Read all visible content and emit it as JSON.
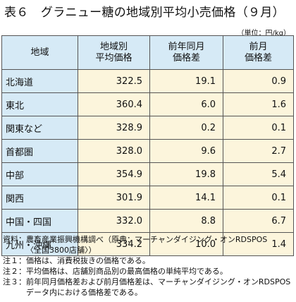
{
  "title": "表６　グラニュー糖の地域別平均小売価格（９月）",
  "unit": "（単位：円/kg）",
  "table": {
    "headers": [
      [
        "地域"
      ],
      [
        "地域別",
        "平均価格"
      ],
      [
        "前年同月",
        "価格差"
      ],
      [
        "前月",
        "価格差"
      ]
    ],
    "rows": [
      {
        "region": "北海道",
        "avg": "322.5",
        "yoy": "19.1",
        "mom": "0.9"
      },
      {
        "region": "東北",
        "avg": "360.4",
        "yoy": "6.0",
        "mom": "1.6"
      },
      {
        "region": "関東など",
        "avg": "328.9",
        "yoy": "0.2",
        "mom": "0.1"
      },
      {
        "region": "首都圏",
        "avg": "328.0",
        "yoy": "9.6",
        "mom": "2.7"
      },
      {
        "region": "中部",
        "avg": "354.9",
        "yoy": "19.8",
        "mom": "5.4"
      },
      {
        "region": "関西",
        "avg": "301.9",
        "yoy": "14.1",
        "mom": "0.1"
      },
      {
        "region": "中国・四国",
        "avg": "332.0",
        "yoy": "8.8",
        "mom": "6.7"
      },
      {
        "region": "九州・沖縄",
        "avg": "334.2",
        "yoy": "10.0",
        "mom": "1.4"
      }
    ]
  },
  "notes": [
    {
      "label": "資料：",
      "lines": [
        "農畜産業振興機構調べ（原典：マーチャンダイジング・オンRDSPOS",
        "〈全国3800店舗〉）"
      ]
    },
    {
      "label": "注１：",
      "lines": [
        "価格は、消費税抜きの価格である。"
      ]
    },
    {
      "label": "注２：",
      "lines": [
        "平均価格は、店舗別商品別の最高価格の単純平均である。"
      ]
    },
    {
      "label": "注３：",
      "lines": [
        "前年同月価格差および前月価格差は、マーチャンダイジング・オンRDSPOSデータ内における価格差である。"
      ]
    }
  ]
}
